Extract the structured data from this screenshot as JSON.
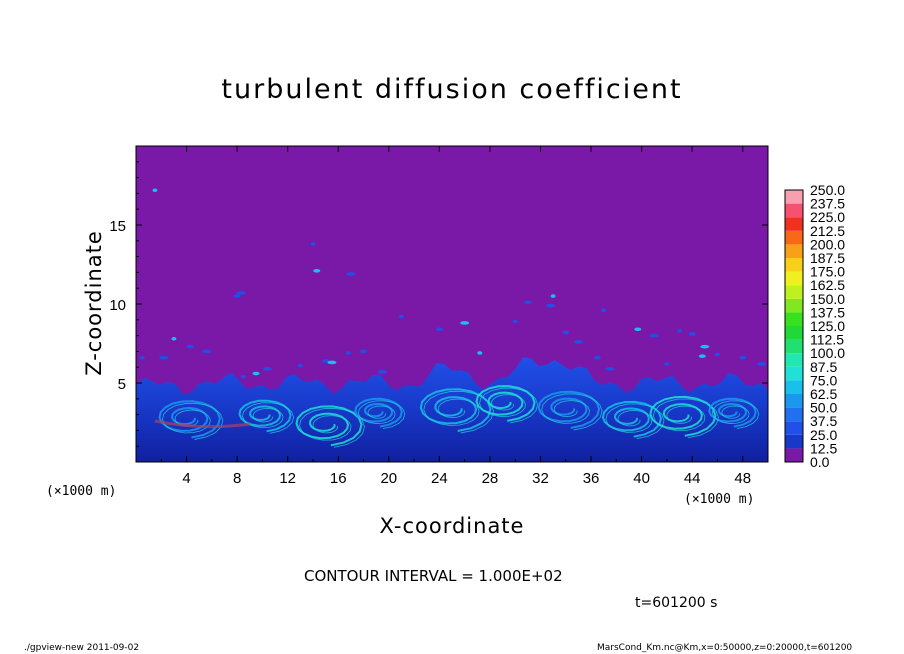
{
  "chart_data": {
    "type": "heatmap",
    "title": "turbulent diffusion coefficient",
    "xlabel": "X-coordinate",
    "ylabel": "Z-coordinate",
    "x_unit": "(×1000 m)",
    "xlim": [
      0,
      50
    ],
    "ylim": [
      0,
      20
    ],
    "x_ticks": [
      "4",
      "8",
      "12",
      "16",
      "20",
      "24",
      "28",
      "32",
      "36",
      "40",
      "44",
      "48"
    ],
    "y_ticks": [
      "5",
      "10",
      "15"
    ],
    "colorbar": {
      "levels": [
        "0.0",
        "12.5",
        "25.0",
        "37.5",
        "50.0",
        "62.5",
        "75.0",
        "87.5",
        "100.0",
        "112.5",
        "125.0",
        "137.5",
        "150.0",
        "162.5",
        "175.0",
        "187.5",
        "200.0",
        "212.5",
        "225.0",
        "237.5",
        "250.0"
      ],
      "colors": [
        "#7a18a8",
        "#1020a0",
        "#1838c8",
        "#2050e8",
        "#2070f0",
        "#1a98f0",
        "#18c0ea",
        "#20e0d8",
        "#20e8b0",
        "#20e070",
        "#20d838",
        "#38e020",
        "#80e820",
        "#c0f020",
        "#f0f020",
        "#f8d018",
        "#f8a018",
        "#f86818",
        "#f03020",
        "#f85070",
        "#f8a0b0"
      ]
    },
    "background_value_color": "#7a18a8",
    "contour_interval": "CONTOUR INTERVAL = 1.000E+02",
    "time": "t=601200 s"
  },
  "footer": {
    "left": "./gpview-new   2011-09-02",
    "right": "MarsCond_Km.nc@Km,x=0:50000,z=0:20000,t=601200"
  }
}
